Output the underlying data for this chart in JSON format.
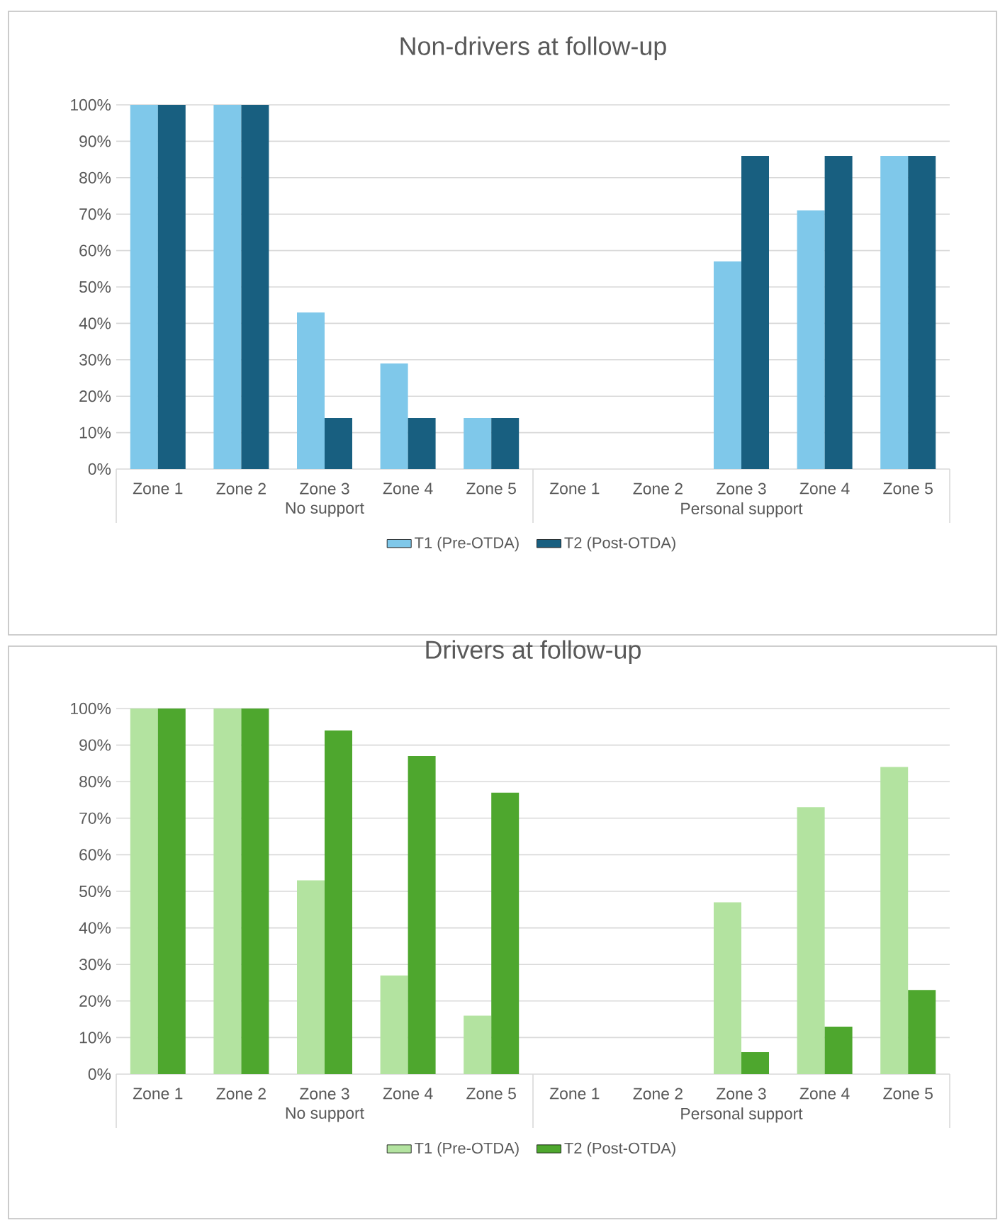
{
  "chart_data": [
    {
      "type": "bar",
      "title": "Non-drivers at follow-up",
      "categories": [
        "Zone 1",
        "Zone 2",
        "Zone 3",
        "Zone 4",
        "Zone 5",
        "Zone 1",
        "Zone 2",
        "Zone 3",
        "Zone 4",
        "Zone 5"
      ],
      "annotations": [
        "No support",
        "Personal support"
      ],
      "series": [
        {
          "name": "T1 (Pre-OTDA)",
          "color": "#7fc8ea",
          "values": [
            100,
            100,
            43,
            29,
            14,
            0,
            0,
            57,
            71,
            86
          ]
        },
        {
          "name": "T2 (Post-OTDA)",
          "color": "#185f80",
          "values": [
            100,
            100,
            14,
            14,
            14,
            0,
            0,
            86,
            86,
            86
          ]
        }
      ],
      "ylim": [
        0,
        100
      ],
      "yticks": [
        {
          "value": 0,
          "label": "0%"
        },
        {
          "value": 10,
          "label": "10%"
        },
        {
          "value": 20,
          "label": "20%"
        },
        {
          "value": 30,
          "label": "30%"
        },
        {
          "value": 40,
          "label": "40%"
        },
        {
          "value": 50,
          "label": "50%"
        },
        {
          "value": 60,
          "label": "60%"
        },
        {
          "value": 70,
          "label": "70%"
        },
        {
          "value": 80,
          "label": "80%"
        },
        {
          "value": 90,
          "label": "90%"
        },
        {
          "value": 100,
          "label": "100%"
        }
      ],
      "grid": "y",
      "legend": "bottom"
    },
    {
      "type": "bar",
      "title": "Drivers at follow-up",
      "categories": [
        "Zone 1",
        "Zone 2",
        "Zone 3",
        "Zone 4",
        "Zone 5",
        "Zone 1",
        "Zone 2",
        "Zone 3",
        "Zone 4",
        "Zone 5"
      ],
      "annotations": [
        "No support",
        "Personal support"
      ],
      "series": [
        {
          "name": "T1 (Pre-OTDA)",
          "color": "#b3e3a0",
          "values": [
            100,
            100,
            53,
            27,
            16,
            0,
            0,
            47,
            73,
            84
          ]
        },
        {
          "name": "T2 (Post-OTDA)",
          "color": "#4ea72e",
          "values": [
            100,
            100,
            94,
            87,
            77,
            0,
            0,
            6,
            13,
            23
          ]
        }
      ],
      "ylim": [
        0,
        100
      ],
      "yticks": [
        {
          "value": 0,
          "label": "0%"
        },
        {
          "value": 10,
          "label": "10%"
        },
        {
          "value": 20,
          "label": "20%"
        },
        {
          "value": 30,
          "label": "30%"
        },
        {
          "value": 40,
          "label": "40%"
        },
        {
          "value": 50,
          "label": "50%"
        },
        {
          "value": 60,
          "label": "60%"
        },
        {
          "value": 70,
          "label": "70%"
        },
        {
          "value": 80,
          "label": "80%"
        },
        {
          "value": 90,
          "label": "90%"
        },
        {
          "value": 100,
          "label": "100%"
        }
      ],
      "grid": "y",
      "legend": "bottom"
    }
  ]
}
